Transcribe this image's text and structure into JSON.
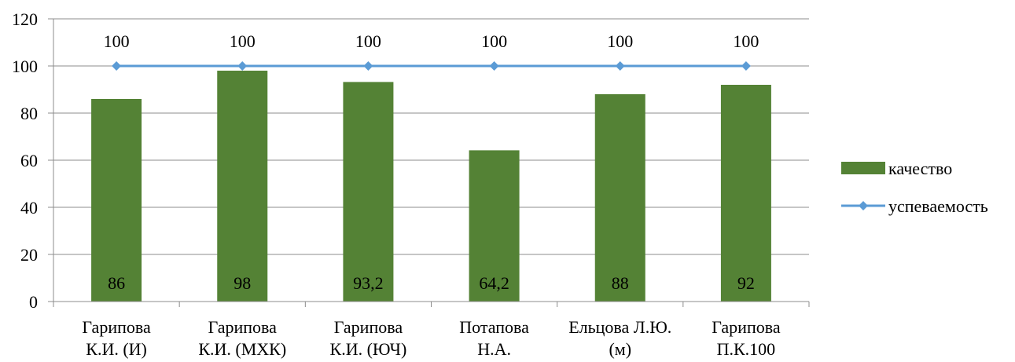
{
  "chart_data": {
    "type": "bar",
    "categories": [
      [
        "Гарипова",
        "К.И. (И)"
      ],
      [
        "Гарипова",
        "К.И. (МХК)"
      ],
      [
        "Гарипова",
        "К.И. (ЮЧ)"
      ],
      [
        "Потапова",
        "Н.А."
      ],
      [
        "Ельцова Л.Ю.",
        "(м)"
      ],
      [
        "Гарипова",
        "П.К.100"
      ]
    ],
    "series": [
      {
        "name": "качество",
        "kind": "bar",
        "color": "#548235",
        "values": [
          86,
          98,
          93.2,
          64.2,
          88,
          92
        ],
        "data_labels": [
          "86",
          "98",
          "93,2",
          "64,2",
          "88",
          "92"
        ]
      },
      {
        "name": "успеваемость",
        "kind": "line",
        "color": "#5B9BD5",
        "marker": "diamond",
        "values": [
          100,
          100,
          100,
          100,
          100,
          100
        ],
        "data_labels": [
          "100",
          "100",
          "100",
          "100",
          "100",
          "100"
        ]
      }
    ],
    "yticks": [
      "0",
      "20",
      "40",
      "60",
      "80",
      "100",
      "120"
    ],
    "ylim": [
      0,
      120
    ],
    "grid": true,
    "legend": "right"
  }
}
